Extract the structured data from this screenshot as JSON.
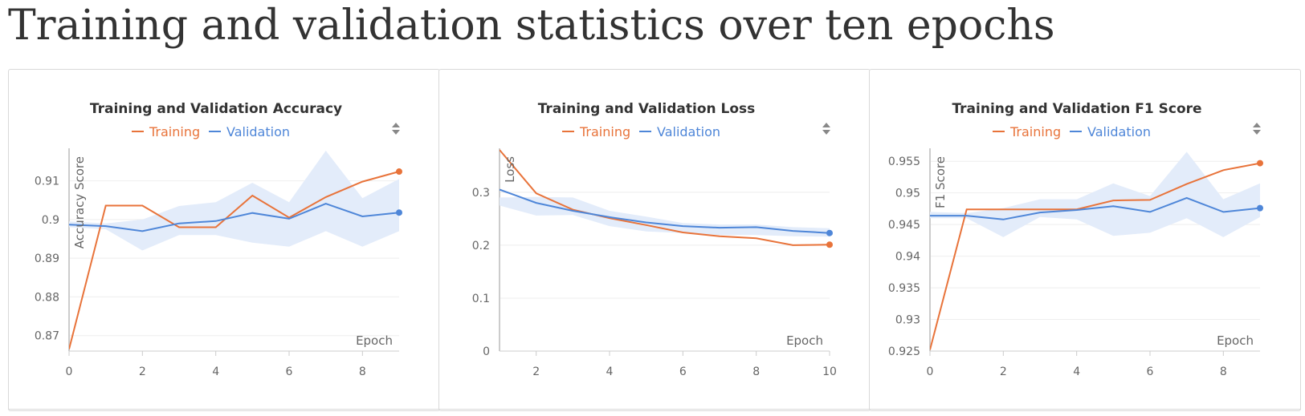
{
  "page": {
    "heading": "Training and validation statistics over ten epochs"
  },
  "colors": {
    "training": "#E8733A",
    "validation": "#4E86D8",
    "band": "#E3ECFA",
    "grid": "#EEEEEE",
    "axis": "#CCCCCC"
  },
  "icons": {
    "legend_sort": "sort-updown-icon"
  },
  "chart_data": [
    {
      "type": "line",
      "title": "Training and Validation Accuracy",
      "xlabel": "Epoch",
      "ylabel": "Accuracy Score",
      "legend_position": "top-center",
      "grid": true,
      "xlim": [
        0,
        9
      ],
      "ylim": [
        0.866,
        0.918
      ],
      "xticks": [
        "0",
        "2",
        "4",
        "6",
        "8"
      ],
      "yticks": [
        "0.87",
        "0.88",
        "0.89",
        "0.9",
        "0.91"
      ],
      "x": [
        0,
        1,
        2,
        3,
        4,
        5,
        6,
        7,
        8,
        9
      ],
      "series": [
        {
          "name": "Training",
          "values": [
            0.8665,
            0.9036,
            0.9036,
            0.898,
            0.898,
            0.9062,
            0.9005,
            0.9058,
            0.9098,
            0.9124
          ]
        },
        {
          "name": "Validation",
          "values": [
            0.8987,
            0.8983,
            0.897,
            0.899,
            0.8996,
            0.9017,
            0.9002,
            0.9041,
            0.9008,
            0.9018
          ]
        }
      ],
      "band": {
        "upper": [
          0.8995,
          0.899,
          0.9,
          0.9035,
          0.9045,
          0.9095,
          0.9045,
          0.9178,
          0.9055,
          0.9105
        ],
        "lower": [
          0.898,
          0.8975,
          0.892,
          0.896,
          0.896,
          0.894,
          0.893,
          0.897,
          0.893,
          0.897
        ]
      }
    },
    {
      "type": "line",
      "title": "Training and Validation Loss",
      "xlabel": "Epoch",
      "ylabel": "Loss",
      "legend_position": "top-center",
      "grid": true,
      "xlim": [
        1,
        10
      ],
      "ylim": [
        0,
        0.38
      ],
      "xticks": [
        "2",
        "4",
        "6",
        "8",
        "10"
      ],
      "yticks": [
        "0",
        "0.1",
        "0.2",
        "0.3"
      ],
      "x": [
        1,
        2,
        3,
        4,
        5,
        6,
        7,
        8,
        9,
        10
      ],
      "series": [
        {
          "name": "Training",
          "values": [
            0.38,
            0.298,
            0.267,
            0.251,
            0.238,
            0.224,
            0.217,
            0.213,
            0.2,
            0.201
          ]
        },
        {
          "name": "Validation",
          "values": [
            0.305,
            0.28,
            0.265,
            0.253,
            0.243,
            0.236,
            0.233,
            0.234,
            0.227,
            0.223
          ]
        }
      ],
      "band": {
        "upper": [
          0.29,
          0.291,
          0.29,
          0.265,
          0.254,
          0.242,
          0.239,
          0.239,
          0.234,
          0.232
        ],
        "lower": [
          0.275,
          0.256,
          0.257,
          0.236,
          0.226,
          0.223,
          0.219,
          0.219,
          0.217,
          0.216
        ]
      }
    },
    {
      "type": "line",
      "title": "Training and Validation F1 Score",
      "xlabel": "Epoch",
      "ylabel": "F1 Score",
      "legend_position": "top-center",
      "grid": true,
      "xlim": [
        0,
        9
      ],
      "ylim": [
        0.925,
        0.9568
      ],
      "xticks": [
        "0",
        "2",
        "4",
        "6",
        "8"
      ],
      "yticks": [
        "0.925",
        "0.93",
        "0.935",
        "0.94",
        "0.945",
        "0.95",
        "0.955"
      ],
      "x": [
        0,
        1,
        2,
        3,
        4,
        5,
        6,
        7,
        8,
        9
      ],
      "series": [
        {
          "name": "Training",
          "values": [
            0.9252,
            0.9474,
            0.9474,
            0.9474,
            0.9474,
            0.9488,
            0.9489,
            0.9514,
            0.9536,
            0.9547
          ]
        },
        {
          "name": "Validation",
          "values": [
            0.9464,
            0.9464,
            0.9458,
            0.9469,
            0.9473,
            0.9479,
            0.947,
            0.9492,
            0.947,
            0.9476
          ]
        }
      ],
      "band": {
        "upper": [
          0.947,
          0.9468,
          0.9476,
          0.949,
          0.949,
          0.9515,
          0.9495,
          0.9565,
          0.949,
          0.9515
        ],
        "lower": [
          0.946,
          0.946,
          0.943,
          0.9462,
          0.9458,
          0.9432,
          0.9437,
          0.946,
          0.943,
          0.9462
        ]
      }
    }
  ]
}
